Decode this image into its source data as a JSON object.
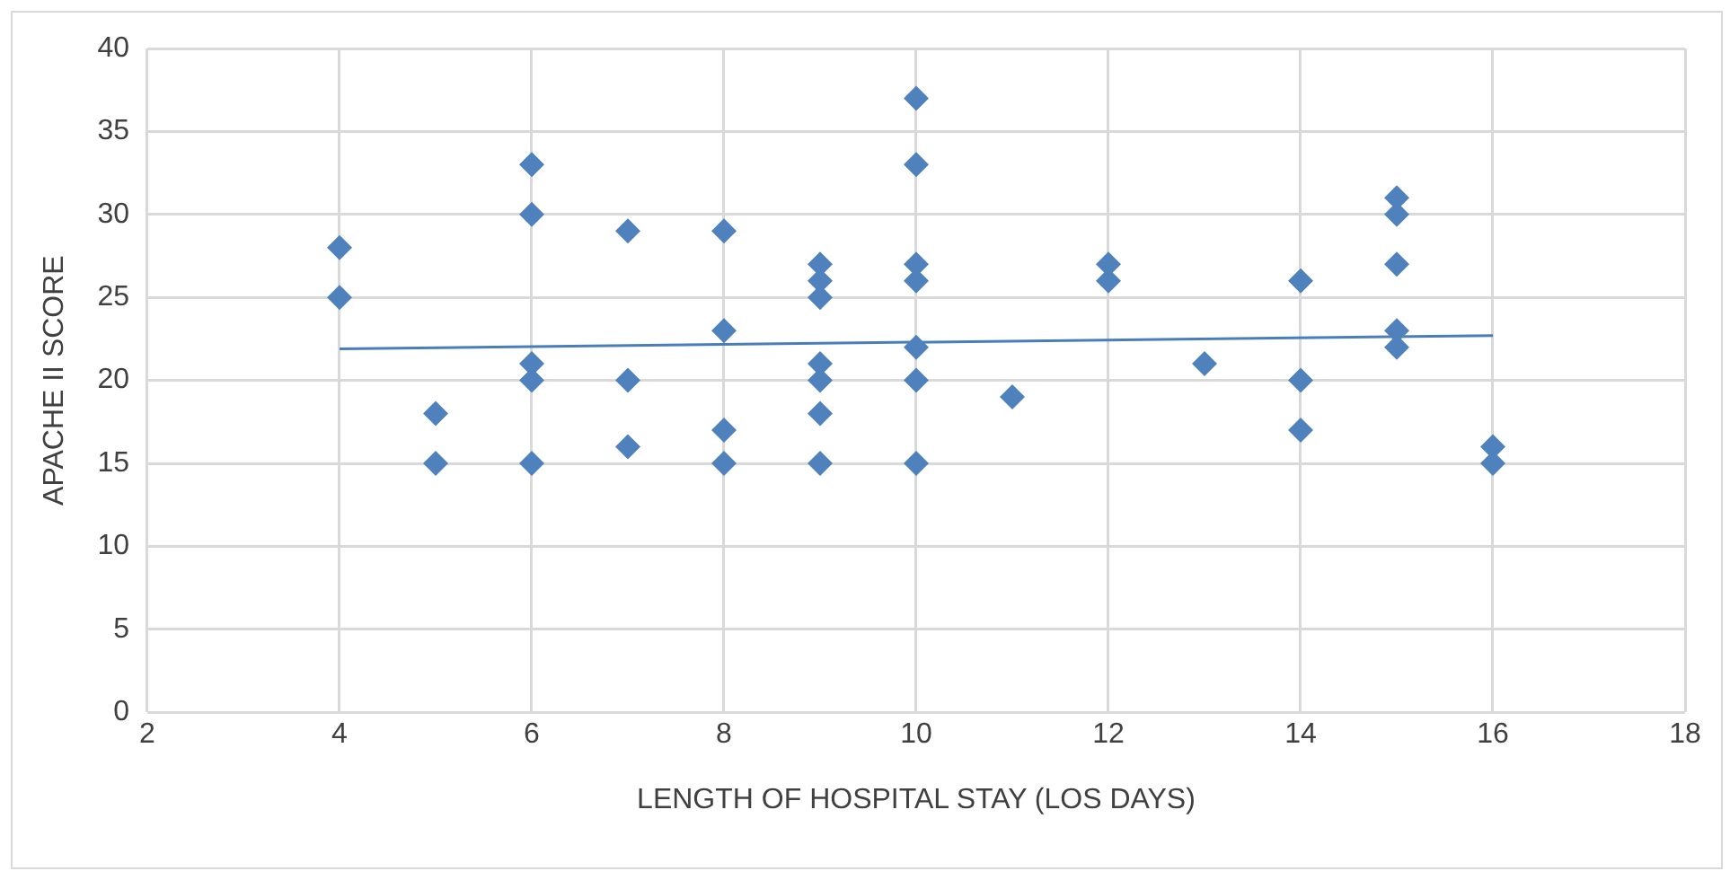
{
  "chart_data": {
    "type": "scatter",
    "xlabel": "LENGTH OF HOSPITAL STAY (LOS DAYS)",
    "ylabel": "APACHE II SCORE",
    "series": [
      {
        "marker": "diamond",
        "color": "#4f81bd",
        "x": [
          4,
          4,
          5,
          5,
          6,
          6,
          6,
          6,
          6,
          7,
          7,
          7,
          8,
          8,
          8,
          8,
          9,
          9,
          9,
          9,
          9,
          9,
          9,
          10,
          10,
          10,
          10,
          10,
          10,
          10,
          11,
          12,
          12,
          13,
          14,
          14,
          14,
          15,
          15,
          15,
          15,
          15,
          16,
          16
        ],
        "values": [
          28,
          25,
          18,
          15,
          33,
          30,
          21,
          20,
          15,
          29,
          20,
          16,
          29,
          23,
          17,
          15,
          27,
          26,
          25,
          21,
          20,
          18,
          15,
          37,
          33,
          27,
          26,
          22,
          20,
          15,
          19,
          27,
          26,
          21,
          26,
          20,
          17,
          31,
          30,
          27,
          23,
          22,
          16,
          15
        ]
      },
      {
        "type": "line",
        "marker": "none",
        "color": "#4a7ebb",
        "x": [
          4,
          16
        ],
        "values": [
          21.9,
          22.7
        ]
      }
    ],
    "xlim": [
      2,
      18
    ],
    "xticks": [
      2,
      4,
      6,
      8,
      10,
      12,
      14,
      16,
      18
    ],
    "ylim": [
      0,
      40
    ],
    "yticks": [
      0,
      5,
      10,
      15,
      20,
      25,
      30,
      35,
      40
    ],
    "grid": true,
    "legend": false
  }
}
